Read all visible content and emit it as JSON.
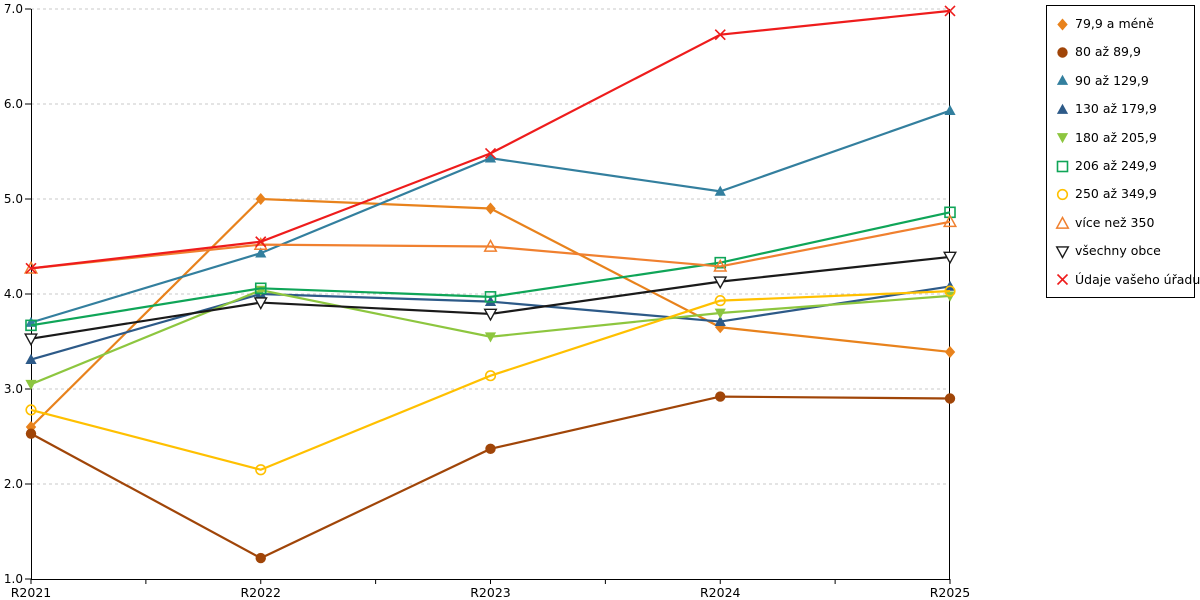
{
  "chart_data": {
    "type": "line",
    "title": "",
    "xlabel": "",
    "ylabel": "",
    "x_categories": [
      "R2021",
      "R2022",
      "R2023",
      "R2024",
      "R2025"
    ],
    "ylim": [
      1.0,
      7.0
    ],
    "y_tick_labels": [
      "1.0",
      "2.0",
      "3.0",
      "4.0",
      "5.0",
      "6.0",
      "7.0"
    ],
    "grid": "horizontal dashed gray lines at each 1.0 step",
    "legend_position": "top-right boxed",
    "axis_color": "#000000",
    "gridline_color": "#c8c8c8",
    "series": [
      {
        "name": "79,9 a méně",
        "marker": "diamond",
        "color": "#E8821C",
        "values": [
          2.6,
          5.0,
          4.9,
          3.65,
          3.39
        ]
      },
      {
        "name": "80 až 89,9",
        "marker": "circle",
        "color": "#A04508",
        "values": [
          2.53,
          1.22,
          2.37,
          2.92,
          2.9
        ]
      },
      {
        "name": "90 až 129,9",
        "marker": "triangle-up",
        "color": "#337F9E",
        "values": [
          3.7,
          4.43,
          5.43,
          5.08,
          5.93
        ]
      },
      {
        "name": "130 až 179,9",
        "marker": "triangle-up",
        "color": "#2D5A88",
        "values": [
          3.31,
          4.0,
          3.92,
          3.71,
          4.08
        ]
      },
      {
        "name": "180 až 205,9",
        "marker": "triangle-down",
        "color": "#8DC63F",
        "values": [
          3.05,
          4.04,
          3.55,
          3.8,
          3.98
        ]
      },
      {
        "name": "206 až 249,9",
        "marker": "square-open",
        "color": "#0FA558",
        "values": [
          3.67,
          4.06,
          3.97,
          4.33,
          4.86
        ]
      },
      {
        "name": "250 až 349,9",
        "marker": "circle-open",
        "color": "#FFC000",
        "values": [
          2.78,
          2.15,
          3.14,
          3.93,
          4.03
        ]
      },
      {
        "name": "více než 350",
        "marker": "triangle-open",
        "color": "#F0802F",
        "values": [
          4.27,
          4.52,
          4.5,
          4.29,
          4.76
        ]
      },
      {
        "name": "všechny obce",
        "marker": "triangle-down-open",
        "color": "#1A1A1A",
        "values": [
          3.53,
          3.91,
          3.79,
          4.13,
          4.39
        ]
      },
      {
        "name": "Údaje vašeho úřadu",
        "marker": "x",
        "color": "#EE1C1C",
        "values": [
          4.27,
          4.55,
          5.48,
          6.73,
          6.98
        ]
      }
    ]
  }
}
